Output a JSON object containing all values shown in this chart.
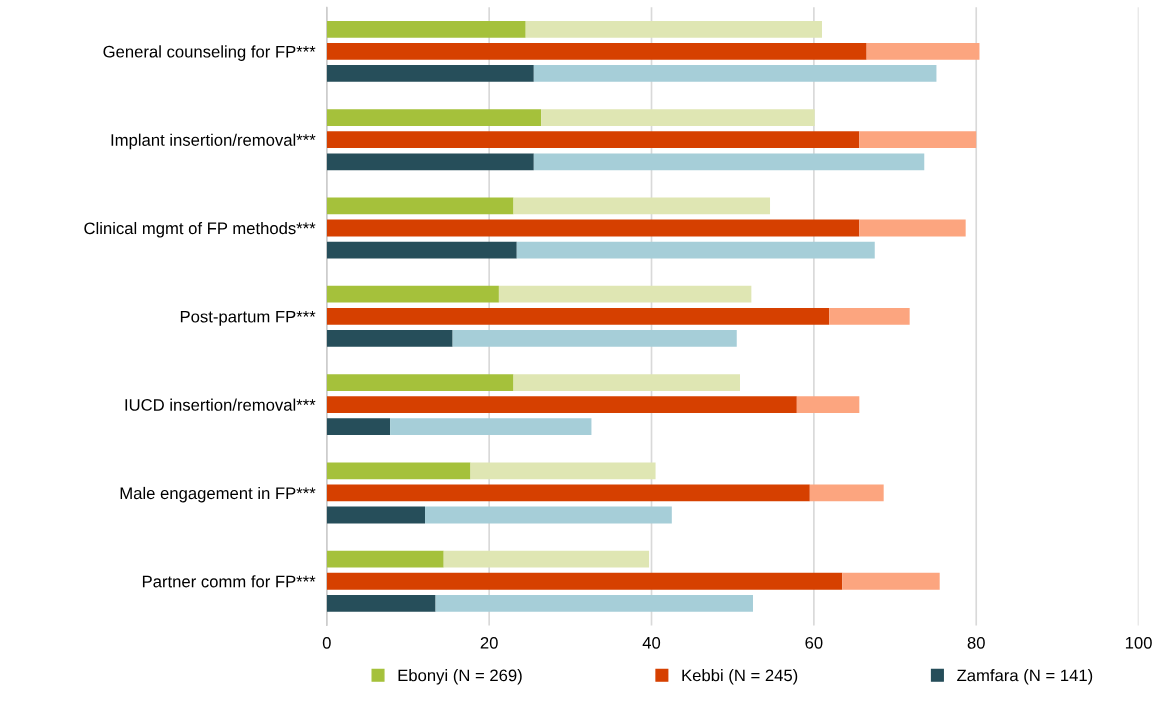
{
  "chart_data": {
    "type": "bar",
    "orientation": "horizontal",
    "categories": [
      "General counseling for FP***",
      "Implant insertion/removal***",
      "Clinical mgmt of FP methods***",
      "Post-partum FP***",
      "IUCD insertion/removal***",
      "Male engagement in FP***",
      "Partner comm for FP***"
    ],
    "series": [
      {
        "name": "Ebonyi (N = 269)",
        "color": "#a5c13b",
        "base": [
          0,
          0,
          0,
          0,
          0,
          0,
          0
        ],
        "values": [
          24.5,
          26.4,
          23.0,
          21.2,
          23.0,
          17.7,
          14.4
        ]
      },
      {
        "color": "#dfe6b3",
        "base": [
          24.5,
          26.4,
          23.0,
          21.2,
          23.0,
          17.7,
          14.4
        ],
        "values": [
          36.5,
          33.7,
          31.6,
          31.1,
          27.9,
          22.8,
          25.3
        ]
      },
      {
        "name": "Kebbi (N = 245)",
        "color": "#d64000",
        "base": [
          0,
          0,
          0,
          0,
          0,
          0,
          0
        ],
        "values": [
          66.5,
          65.6,
          65.6,
          61.9,
          57.9,
          59.5,
          63.5
        ]
      },
      {
        "color": "#fca57f",
        "base": [
          66.5,
          65.6,
          65.6,
          61.9,
          57.9,
          59.5,
          63.5
        ],
        "values": [
          13.9,
          14.4,
          13.1,
          9.9,
          7.7,
          9.1,
          12.0
        ]
      },
      {
        "name": "Zamfara (N = 141)",
        "color": "#264e5a",
        "base": [
          0,
          0,
          0,
          0,
          0,
          0,
          0
        ],
        "values": [
          25.5,
          25.5,
          23.4,
          15.5,
          7.8,
          12.1,
          13.4
        ]
      },
      {
        "color": "#a6ced8",
        "base": [
          25.5,
          25.5,
          23.4,
          15.5,
          7.8,
          12.1,
          13.4
        ],
        "values": [
          49.6,
          48.1,
          44.1,
          35.0,
          24.8,
          30.4,
          39.1
        ]
      }
    ],
    "xlim": [
      0,
      100
    ],
    "xticks": [
      0,
      20,
      40,
      60,
      80,
      100
    ],
    "grid": "x",
    "legend": "bottom"
  }
}
